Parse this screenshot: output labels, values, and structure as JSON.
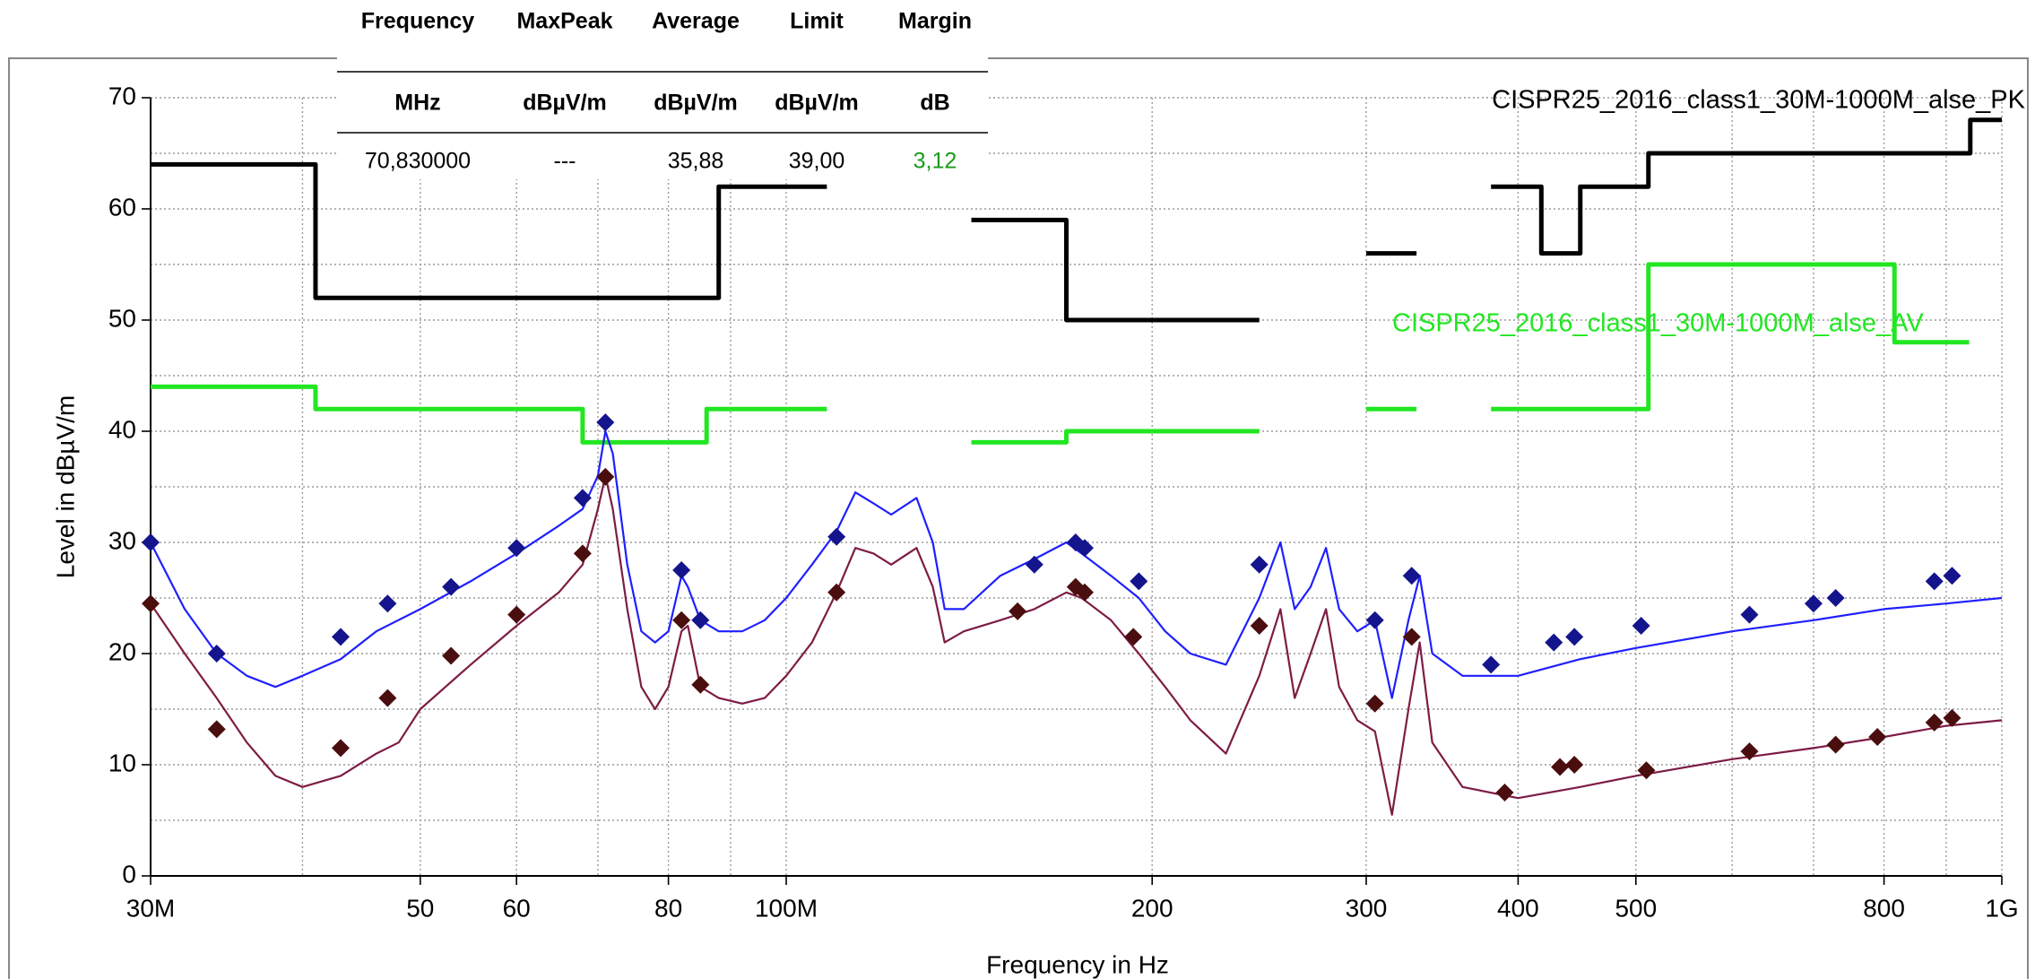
{
  "chart_data": {
    "type": "line",
    "xscale": "log",
    "xlabel": "Frequency in Hz",
    "ylabel": "Level in dBµV/m",
    "xlim": [
      30000000.0,
      1000000000.0
    ],
    "ylim": [
      0,
      70
    ],
    "xticks": [
      {
        "value": 30000000.0,
        "label": "30M"
      },
      {
        "value": 50000000.0,
        "label": "50"
      },
      {
        "value": 60000000.0,
        "label": "60"
      },
      {
        "value": 80000000.0,
        "label": "80"
      },
      {
        "value": 100000000.0,
        "label": "100M"
      },
      {
        "value": 200000000.0,
        "label": "200"
      },
      {
        "value": 300000000.0,
        "label": "300"
      },
      {
        "value": 400000000.0,
        "label": "400"
      },
      {
        "value": 500000000.0,
        "label": "500"
      },
      {
        "value": 800000000.0,
        "label": "800"
      },
      {
        "value": 1000000000.0,
        "label": "1G"
      }
    ],
    "xminor": [
      40000000.0,
      70000000.0,
      90000000.0,
      600000000.0,
      700000000.0,
      900000000.0
    ],
    "yticks": [
      0,
      10,
      20,
      30,
      40,
      50,
      60,
      70
    ],
    "yminor": [
      5,
      15,
      25,
      35,
      45,
      55,
      65
    ],
    "grid": true,
    "series": [
      {
        "label": "CISPR25_2016_class1_30M-1000M_alse_PK",
        "color": "#000000",
        "style": "line",
        "width": 5,
        "x": [
          30000000.0,
          41000000.0,
          41000000.0,
          88000000.0,
          88000000.0,
          108000000.0,
          null,
          142000000.0,
          170000000.0,
          170000000.0,
          245000000.0,
          null,
          300000000.0,
          330000000.0,
          null,
          380000000.0,
          418000000.0,
          418000000.0,
          450000000.0,
          450000000.0,
          512000000.0,
          512000000.0,
          942000000.0,
          942000000.0,
          1000000000.0
        ],
        "values": [
          64,
          64,
          52,
          52,
          62,
          62,
          null,
          59,
          59,
          50,
          50,
          null,
          56,
          56,
          null,
          62,
          62,
          56,
          56,
          62,
          62,
          65,
          65,
          68,
          68
        ]
      },
      {
        "label": "CISPR25_2016_class1_30M-1000M_alse_AV",
        "color": "#22e622",
        "style": "line",
        "width": 5,
        "x": [
          30000000.0,
          41000000.0,
          41000000.0,
          68000000.0,
          68000000.0,
          86000000.0,
          86000000.0,
          108000000.0,
          null,
          142000000.0,
          170000000.0,
          170000000.0,
          245000000.0,
          null,
          300000000.0,
          330000000.0,
          null,
          380000000.0,
          512000000.0,
          512000000.0,
          816000000.0,
          816000000.0,
          940000000.0
        ],
        "values": [
          44,
          44,
          42,
          42,
          39,
          39,
          42,
          42,
          null,
          39,
          39,
          40,
          40,
          null,
          42,
          42,
          null,
          42,
          42,
          55,
          55,
          48,
          48
        ]
      },
      {
        "color": "#1f1fff",
        "style": "line",
        "width": 2.2,
        "x": [
          30000000.0,
          32000000.0,
          34000000.0,
          36000000.0,
          38000000.0,
          40000000.0,
          43000000.0,
          46000000.0,
          50000000.0,
          55000000.0,
          60000000.0,
          65000000.0,
          68000000.0,
          70000000.0,
          71000000.0,
          72000000.0,
          74000000.0,
          76000000.0,
          78000000.0,
          80000000.0,
          82000000.0,
          83000000.0,
          85000000.0,
          88000000.0,
          92000000.0,
          96000000.0,
          100000000.0,
          105000000.0,
          110000000.0,
          114000000.0,
          118000000.0,
          122000000.0,
          128000000.0,
          132000000.0,
          135000000.0,
          140000000.0,
          150000000.0,
          160000000.0,
          170000000.0,
          175000000.0,
          185000000.0,
          195000000.0,
          205000000.0,
          215000000.0,
          230000000.0,
          245000000.0,
          255000000.0,
          262000000.0,
          270000000.0,
          278000000.0,
          285000000.0,
          295000000.0,
          305000000.0,
          315000000.0,
          325000000.0,
          332000000.0,
          340000000.0,
          360000000.0,
          400000000.0,
          450000000.0,
          500000000.0,
          600000000.0,
          700000000.0,
          800000000.0,
          900000000.0,
          1000000000.0
        ],
        "values": [
          30,
          24,
          20,
          18,
          17,
          18,
          19.5,
          22,
          24,
          26.5,
          29,
          31.5,
          33,
          36,
          40,
          38,
          28,
          22,
          21,
          22,
          27,
          26,
          23,
          22,
          22,
          23,
          25,
          28,
          31,
          34.5,
          33.5,
          32.5,
          34,
          30,
          24,
          24,
          27,
          28.5,
          30,
          29,
          27,
          25,
          22,
          20,
          19,
          25,
          30,
          24,
          26,
          29.5,
          24,
          22,
          23,
          16,
          23,
          27,
          20,
          18,
          18,
          19.5,
          20.5,
          22,
          23,
          24,
          24.5,
          25
        ]
      },
      {
        "color": "#7d1c45",
        "style": "line",
        "width": 2.2,
        "x": [
          30000000.0,
          32000000.0,
          34000000.0,
          36000000.0,
          38000000.0,
          40000000.0,
          43000000.0,
          46000000.0,
          48000000.0,
          50000000.0,
          55000000.0,
          60000000.0,
          65000000.0,
          68000000.0,
          70000000.0,
          71000000.0,
          72000000.0,
          74000000.0,
          76000000.0,
          78000000.0,
          80000000.0,
          82000000.0,
          83000000.0,
          85000000.0,
          88000000.0,
          92000000.0,
          96000000.0,
          100000000.0,
          105000000.0,
          110000000.0,
          114000000.0,
          118000000.0,
          122000000.0,
          128000000.0,
          132000000.0,
          135000000.0,
          140000000.0,
          150000000.0,
          160000000.0,
          170000000.0,
          175000000.0,
          185000000.0,
          195000000.0,
          205000000.0,
          215000000.0,
          230000000.0,
          245000000.0,
          255000000.0,
          262000000.0,
          270000000.0,
          278000000.0,
          285000000.0,
          295000000.0,
          305000000.0,
          315000000.0,
          325000000.0,
          332000000.0,
          340000000.0,
          360000000.0,
          400000000.0,
          450000000.0,
          500000000.0,
          600000000.0,
          700000000.0,
          800000000.0,
          900000000.0,
          1000000000.0
        ],
        "values": [
          24.5,
          20,
          16,
          12,
          9,
          8,
          9,
          11,
          12,
          15,
          19,
          22.5,
          25.5,
          28,
          33,
          36,
          33,
          24,
          17,
          15,
          17,
          22,
          22.5,
          17,
          16,
          15.5,
          16,
          18,
          21,
          25.5,
          29.5,
          29,
          28,
          29.5,
          26,
          21,
          22,
          23,
          24,
          25.5,
          25,
          23,
          20,
          17,
          14,
          11,
          18,
          24,
          16,
          20,
          24,
          17,
          14,
          13,
          5.5,
          15,
          21,
          12,
          8,
          7,
          8,
          9,
          10.5,
          11.5,
          12.5,
          13.5,
          14
        ]
      },
      {
        "color": "#14148c",
        "style": "markers",
        "x": [
          30000000.0,
          34000000.0,
          43000000.0,
          47000000.0,
          53000000.0,
          60000000.0,
          68000000.0,
          71000000.0,
          82000000.0,
          85000000.0,
          110000000.0,
          160000000.0,
          173000000.0,
          176000000.0,
          195000000.0,
          245000000.0,
          305000000.0,
          327000000.0,
          380000000.0,
          428000000.0,
          445000000.0,
          505000000.0,
          620000000.0,
          700000000.0,
          730000000.0,
          880000000.0,
          910000000.0
        ],
        "values": [
          30,
          20,
          21.5,
          24.5,
          26,
          29.5,
          34,
          40.8,
          27.5,
          23,
          30.5,
          28,
          30,
          29.5,
          26.5,
          28,
          23,
          27,
          19,
          21,
          21.5,
          22.5,
          23.5,
          24.5,
          25,
          26.5,
          27
        ]
      },
      {
        "color": "#4a0e0e",
        "style": "markers",
        "x": [
          30000000.0,
          34000000.0,
          43000000.0,
          47000000.0,
          53000000.0,
          60000000.0,
          68000000.0,
          71000000.0,
          82000000.0,
          85000000.0,
          110000000.0,
          155000000.0,
          173000000.0,
          176000000.0,
          193000000.0,
          245000000.0,
          305000000.0,
          327000000.0,
          390000000.0,
          433000000.0,
          445000000.0,
          510000000.0,
          620000000.0,
          730000000.0,
          790000000.0,
          880000000.0,
          910000000.0
        ],
        "values": [
          24.5,
          13.2,
          11.5,
          16,
          19.8,
          23.5,
          29,
          35.9,
          23,
          17.2,
          25.5,
          23.8,
          26,
          25.5,
          21.5,
          22.5,
          15.5,
          21.5,
          7.5,
          9.8,
          10,
          9.5,
          11.2,
          11.8,
          12.5,
          13.8,
          14.2
        ]
      }
    ]
  },
  "table": {
    "headers": [
      "Frequency",
      "MaxPeak",
      "Average",
      "Limit",
      "Margin"
    ],
    "units": [
      "MHz",
      "dBµV/m",
      "dBµV/m",
      "dBµV/m",
      "dB"
    ],
    "rows": [
      [
        "70,830000",
        "---",
        "35,88",
        "39,00",
        "3,12"
      ]
    ]
  }
}
